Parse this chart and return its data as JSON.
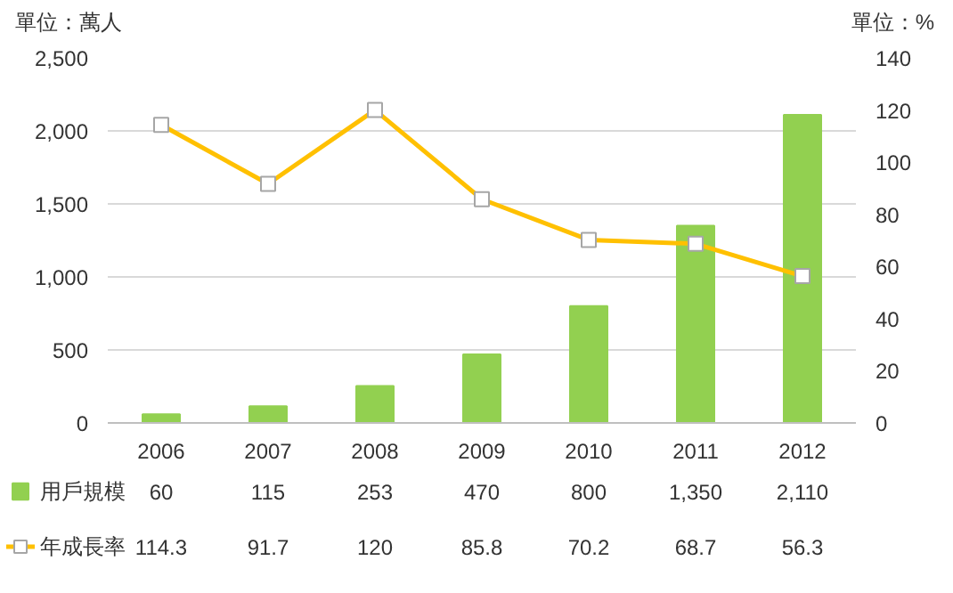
{
  "chart_data": {
    "type": "bar",
    "categories": [
      "2006",
      "2007",
      "2008",
      "2009",
      "2010",
      "2011",
      "2012"
    ],
    "ylabel": "單位：萬人",
    "y2label": "單位：%",
    "ylim": [
      0,
      2500
    ],
    "yticks": [
      0,
      500,
      {
        "value": 1000,
        "label": "1,000"
      },
      {
        "value": 1500,
        "label": "1,500"
      },
      {
        "value": 2000,
        "label": "2,000"
      },
      {
        "value": 2500,
        "label": "2,500"
      }
    ],
    "y2lim": [
      0,
      140
    ],
    "y2ticks": [
      0,
      20,
      40,
      60,
      80,
      100,
      120,
      140
    ],
    "grid": "y",
    "legend": "bottom",
    "marker": "square",
    "line_style": "solid",
    "series": [
      {
        "name": "用戶規模",
        "color": "#92d050",
        "values": [
          60,
          115,
          253,
          470,
          800,
          1350,
          2110
        ],
        "value_labels": [
          "60",
          "115",
          "253",
          "470",
          "800",
          "1,350",
          "2,110"
        ]
      },
      {
        "name": "年成長率",
        "type": "line",
        "axis": "y2",
        "color": "#ffc000",
        "values": [
          114.3,
          91.7,
          120,
          85.8,
          70.2,
          68.7,
          56.3
        ],
        "value_labels": [
          "114.3",
          "91.7",
          "120",
          "85.8",
          "70.2",
          "68.7",
          "56.3"
        ]
      }
    ]
  }
}
